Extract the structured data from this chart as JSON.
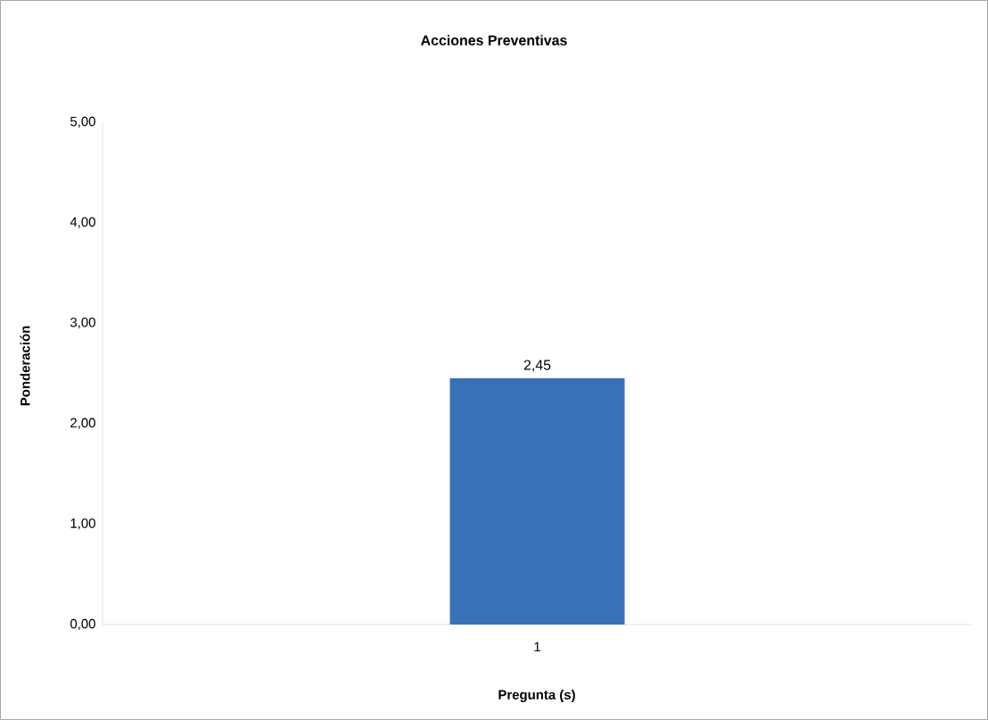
{
  "chart_data": {
    "type": "bar",
    "title": "Acciones Preventivas",
    "xlabel": "Pregunta (s)",
    "ylabel": "Ponderación",
    "categories": [
      "1"
    ],
    "values": [
      2.45
    ],
    "value_labels": [
      "2,45"
    ],
    "color": "#3a70b8",
    "ylim": [
      0,
      5
    ],
    "yticks": [
      {
        "value": 0,
        "label": "0,00"
      },
      {
        "value": 1,
        "label": "1,00"
      },
      {
        "value": 2,
        "label": "2,00"
      },
      {
        "value": 3,
        "label": "3,00"
      },
      {
        "value": 4,
        "label": "4,00"
      },
      {
        "value": 5,
        "label": "5,00"
      }
    ],
    "grid": false
  }
}
